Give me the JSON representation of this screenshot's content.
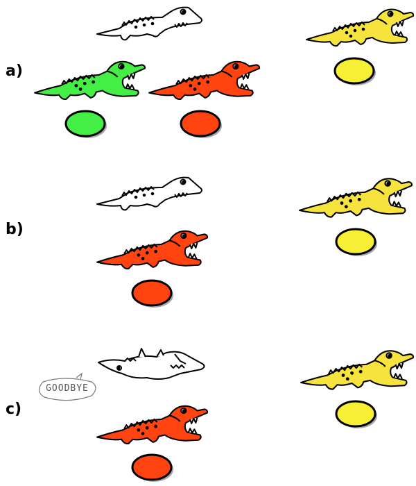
{
  "rows": [
    {
      "label": "a)",
      "crocs": [
        {
          "role": "white-alligator",
          "color": "#ffffff",
          "pose": "walking-right"
        },
        {
          "role": "yellow-alligator",
          "color": "#f7e33d",
          "pose": "jaws-open"
        },
        {
          "role": "green-alligator",
          "color": "#44ee44",
          "pose": "jaws-open"
        },
        {
          "role": "red-alligator",
          "color": "#ff4411",
          "pose": "jaws-open"
        }
      ],
      "eggs": [
        {
          "color": "#f7ef33"
        },
        {
          "color": "#44ee44"
        },
        {
          "color": "#ff4411"
        }
      ]
    },
    {
      "label": "b)",
      "crocs": [
        {
          "role": "white-alligator",
          "color": "#ffffff",
          "pose": "walking-right"
        },
        {
          "role": "yellow-alligator",
          "color": "#f7e33d",
          "pose": "jaws-open"
        },
        {
          "role": "red-alligator",
          "color": "#ff4411",
          "pose": "jaws-open"
        }
      ],
      "eggs": [
        {
          "color": "#f7ef33"
        },
        {
          "color": "#ff4411"
        }
      ]
    },
    {
      "label": "c)",
      "crocs": [
        {
          "role": "white-alligator",
          "color": "#ffffff",
          "pose": "belly-up"
        },
        {
          "role": "yellow-alligator",
          "color": "#f7e33d",
          "pose": "jaws-open"
        },
        {
          "role": "red-alligator",
          "color": "#ff4411",
          "pose": "jaws-open"
        }
      ],
      "eggs": [
        {
          "color": "#f7ef33"
        },
        {
          "color": "#ff4411"
        }
      ],
      "speech_bubble": "GOODBYE"
    }
  ],
  "icons": {
    "alligator": "alligator-icon",
    "egg": "egg-icon",
    "bubble": "speech-bubble-icon"
  }
}
